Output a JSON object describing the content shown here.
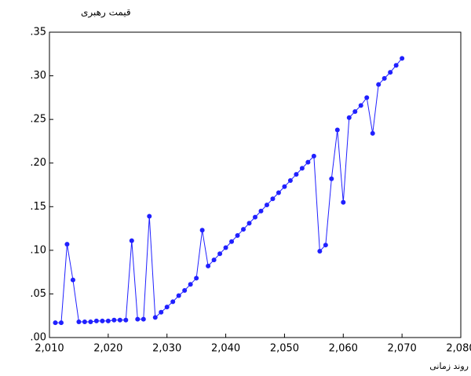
{
  "chart_data": {
    "type": "line",
    "y_axis_title": "قیمت رهبری",
    "x_axis_title": "روند زمانی",
    "x": [
      2011,
      2012,
      2013,
      2014,
      2015,
      2016,
      2017,
      2018,
      2019,
      2020,
      2021,
      2022,
      2023,
      2024,
      2025,
      2026,
      2027,
      2028,
      2029,
      2030,
      2031,
      2032,
      2033,
      2034,
      2035,
      2036,
      2037,
      2038,
      2039,
      2040,
      2041,
      2042,
      2043,
      2044,
      2045,
      2046,
      2047,
      2048,
      2049,
      2050,
      2051,
      2052,
      2053,
      2054,
      2055,
      2056,
      2057,
      2058,
      2059,
      2060,
      2061,
      2062,
      2063,
      2064,
      2065,
      2066,
      2067,
      2068,
      2069,
      2070
    ],
    "series": [
      {
        "color": "#2020ff",
        "values": [
          0.017,
          0.017,
          0.107,
          0.066,
          0.018,
          0.018,
          0.018,
          0.019,
          0.019,
          0.019,
          0.02,
          0.02,
          0.02,
          0.111,
          0.021,
          0.021,
          0.139,
          0.023,
          0.029,
          0.035,
          0.041,
          0.048,
          0.054,
          0.061,
          0.068,
          0.123,
          0.082,
          0.089,
          0.096,
          0.103,
          0.11,
          0.117,
          0.124,
          0.131,
          0.138,
          0.145,
          0.152,
          0.159,
          0.166,
          0.173,
          0.18,
          0.187,
          0.194,
          0.201,
          0.208,
          0.099,
          0.106,
          0.182,
          0.238,
          0.155,
          0.252,
          0.259,
          0.266,
          0.275,
          0.234,
          0.29,
          0.297,
          0.304,
          0.312,
          0.32
        ]
      }
    ],
    "xlim": [
      2010,
      2080
    ],
    "xticks": [
      {
        "value": 2010,
        "label": "2,010"
      },
      {
        "value": 2020,
        "label": "2,020"
      },
      {
        "value": 2030,
        "label": "2,030"
      },
      {
        "value": 2040,
        "label": "2,040"
      },
      {
        "value": 2050,
        "label": "2,050"
      },
      {
        "value": 2060,
        "label": "2,060"
      },
      {
        "value": 2070,
        "label": "2,070"
      },
      {
        "value": 2080,
        "label": "2,080"
      }
    ],
    "ylim": [
      0,
      0.35
    ],
    "yticks": [
      {
        "value": 0,
        "label": ".00"
      },
      {
        "value": 0.05,
        "label": ".05"
      },
      {
        "value": 0.1,
        "label": ".10"
      },
      {
        "value": 0.15,
        "label": ".15"
      },
      {
        "value": 0.2,
        "label": ".20"
      },
      {
        "value": 0.25,
        "label": ".25"
      },
      {
        "value": 0.3,
        "label": ".30"
      },
      {
        "value": 0.35,
        "label": ".35"
      }
    ]
  }
}
